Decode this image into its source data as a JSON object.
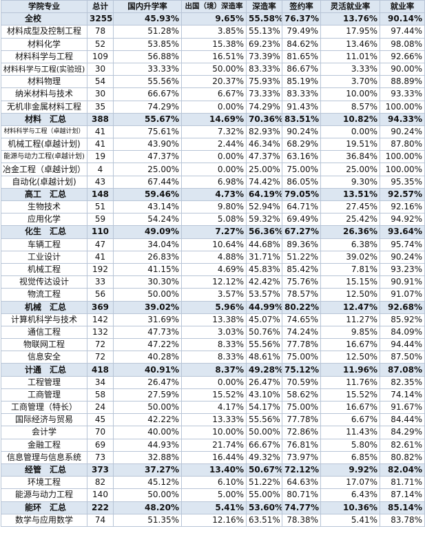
{
  "table": {
    "header": [
      "学院专业",
      "总计",
      "国内升学率",
      "出国（境）深造率",
      "深造率",
      "签约率",
      "灵活就业率",
      "就业率"
    ],
    "rows": [
      {
        "cells": [
          "全校",
          "3255",
          "45.93%",
          "9.65%",
          "55.58%",
          "76.37%",
          "13.76%",
          "90.14%"
        ],
        "highlight": true
      },
      {
        "cells": [
          "材料成型及控制工程",
          "78",
          "51.28%",
          "3.85%",
          "55.13%",
          "79.49%",
          "17.95%",
          "97.44%"
        ],
        "highlight": false
      },
      {
        "cells": [
          "材料化学",
          "52",
          "53.85%",
          "15.38%",
          "69.23%",
          "84.62%",
          "13.46%",
          "98.08%"
        ],
        "highlight": false
      },
      {
        "cells": [
          "材料科学与工程",
          "109",
          "56.88%",
          "16.51%",
          "73.39%",
          "81.65%",
          "11.01%",
          "92.66%"
        ],
        "highlight": false
      },
      {
        "cells": [
          "材料科学与工程(实验班)",
          "30",
          "33.33%",
          "50.00%",
          "83.33%",
          "86.67%",
          "3.33%",
          "90.00%"
        ],
        "highlight": false
      },
      {
        "cells": [
          "材料物理",
          "54",
          "55.56%",
          "20.37%",
          "75.93%",
          "85.19%",
          "3.70%",
          "88.89%"
        ],
        "highlight": false
      },
      {
        "cells": [
          "纳米材料与技术",
          "30",
          "66.67%",
          "6.67%",
          "73.33%",
          "83.33%",
          "10.00%",
          "93.33%"
        ],
        "highlight": false
      },
      {
        "cells": [
          "无机非金属材料工程",
          "35",
          "74.29%",
          "0.00%",
          "74.29%",
          "91.43%",
          "8.57%",
          "100.00%"
        ],
        "highlight": false
      },
      {
        "cells": [
          "材料　汇总",
          "388",
          "55.67%",
          "14.69%",
          "70.36%",
          "83.51%",
          "10.82%",
          "94.33%"
        ],
        "highlight": true
      },
      {
        "cells": [
          "材料科学与工程（卓越计划）",
          "41",
          "75.61%",
          "7.32%",
          "82.93%",
          "90.24%",
          "0.00%",
          "90.24%"
        ],
        "highlight": false
      },
      {
        "cells": [
          "机械工程(卓越计划)",
          "41",
          "43.90%",
          "2.44%",
          "46.34%",
          "68.29%",
          "19.51%",
          "87.80%"
        ],
        "highlight": false
      },
      {
        "cells": [
          "能源与动力工程(卓越计划)",
          "19",
          "47.37%",
          "0.00%",
          "47.37%",
          "63.16%",
          "36.84%",
          "100.00%"
        ],
        "highlight": false
      },
      {
        "cells": [
          "冶金工程（卓越计划）",
          "4",
          "25.00%",
          "0.00%",
          "25.00%",
          "75.00%",
          "25.00%",
          "100.00%"
        ],
        "highlight": false
      },
      {
        "cells": [
          "自动化(卓越计划)",
          "43",
          "67.44%",
          "6.98%",
          "74.42%",
          "86.05%",
          "9.30%",
          "95.35%"
        ],
        "highlight": false
      },
      {
        "cells": [
          "高工　汇总",
          "148",
          "59.46%",
          "4.73%",
          "64.19%",
          "79.05%",
          "13.51%",
          "92.57%"
        ],
        "highlight": true
      },
      {
        "cells": [
          "生物技术",
          "51",
          "43.14%",
          "9.80%",
          "52.94%",
          "64.71%",
          "27.45%",
          "92.16%"
        ],
        "highlight": false
      },
      {
        "cells": [
          "应用化学",
          "59",
          "54.24%",
          "5.08%",
          "59.32%",
          "69.49%",
          "25.42%",
          "94.92%"
        ],
        "highlight": false
      },
      {
        "cells": [
          "化生　汇总",
          "110",
          "49.09%",
          "7.27%",
          "56.36%",
          "67.27%",
          "26.36%",
          "93.64%"
        ],
        "highlight": true
      },
      {
        "cells": [
          "车辆工程",
          "47",
          "34.04%",
          "10.64%",
          "44.68%",
          "89.36%",
          "6.38%",
          "95.74%"
        ],
        "highlight": false
      },
      {
        "cells": [
          "工业设计",
          "41",
          "26.83%",
          "4.88%",
          "31.71%",
          "51.22%",
          "39.02%",
          "90.24%"
        ],
        "highlight": false
      },
      {
        "cells": [
          "机械工程",
          "192",
          "41.15%",
          "4.69%",
          "45.83%",
          "85.42%",
          "7.81%",
          "93.23%"
        ],
        "highlight": false
      },
      {
        "cells": [
          "视觉传达设计",
          "33",
          "30.30%",
          "12.12%",
          "42.42%",
          "75.76%",
          "15.15%",
          "90.91%"
        ],
        "highlight": false
      },
      {
        "cells": [
          "物流工程",
          "56",
          "50.00%",
          "3.57%",
          "53.57%",
          "78.57%",
          "12.50%",
          "91.07%"
        ],
        "highlight": false
      },
      {
        "cells": [
          "机械　汇总",
          "369",
          "39.02%",
          "5.96%",
          "44.99%",
          "80.22%",
          "12.47%",
          "92.68%"
        ],
        "highlight": true
      },
      {
        "cells": [
          "计算机科学与技术",
          "142",
          "31.69%",
          "13.38%",
          "45.07%",
          "74.65%",
          "11.27%",
          "85.92%"
        ],
        "highlight": false
      },
      {
        "cells": [
          "通信工程",
          "132",
          "47.73%",
          "3.03%",
          "50.76%",
          "74.24%",
          "9.85%",
          "84.09%"
        ],
        "highlight": false
      },
      {
        "cells": [
          "物联网工程",
          "72",
          "47.22%",
          "8.33%",
          "55.56%",
          "77.78%",
          "16.67%",
          "94.44%"
        ],
        "highlight": false
      },
      {
        "cells": [
          "信息安全",
          "72",
          "40.28%",
          "8.33%",
          "48.61%",
          "75.00%",
          "12.50%",
          "87.50%"
        ],
        "highlight": false
      },
      {
        "cells": [
          "计通　汇总",
          "418",
          "40.91%",
          "8.37%",
          "49.28%",
          "75.12%",
          "11.96%",
          "87.08%"
        ],
        "highlight": true
      },
      {
        "cells": [
          "工程管理",
          "34",
          "26.47%",
          "0.00%",
          "26.47%",
          "70.59%",
          "11.76%",
          "82.35%"
        ],
        "highlight": false
      },
      {
        "cells": [
          "工商管理",
          "58",
          "27.59%",
          "15.52%",
          "43.10%",
          "58.62%",
          "15.52%",
          "74.14%"
        ],
        "highlight": false
      },
      {
        "cells": [
          "工商管理（特长）",
          "24",
          "50.00%",
          "4.17%",
          "54.17%",
          "75.00%",
          "16.67%",
          "91.67%"
        ],
        "highlight": false
      },
      {
        "cells": [
          "国际经济与贸易",
          "45",
          "42.22%",
          "13.33%",
          "55.56%",
          "77.78%",
          "6.67%",
          "84.44%"
        ],
        "highlight": false
      },
      {
        "cells": [
          "会计学",
          "70",
          "40.00%",
          "10.00%",
          "50.00%",
          "72.86%",
          "11.43%",
          "84.29%"
        ],
        "highlight": false
      },
      {
        "cells": [
          "金融工程",
          "69",
          "44.93%",
          "21.74%",
          "66.67%",
          "76.81%",
          "5.80%",
          "82.61%"
        ],
        "highlight": false
      },
      {
        "cells": [
          "信息管理与信息系统",
          "73",
          "32.88%",
          "16.44%",
          "49.32%",
          "73.97%",
          "6.85%",
          "80.82%"
        ],
        "highlight": false
      },
      {
        "cells": [
          "经管　汇总",
          "373",
          "37.27%",
          "13.40%",
          "50.67%",
          "72.12%",
          "9.92%",
          "82.04%"
        ],
        "highlight": true
      },
      {
        "cells": [
          "环境工程",
          "82",
          "45.12%",
          "6.10%",
          "51.22%",
          "64.63%",
          "17.07%",
          "81.71%"
        ],
        "highlight": false
      },
      {
        "cells": [
          "能源与动力工程",
          "140",
          "50.00%",
          "5.00%",
          "55.00%",
          "80.71%",
          "6.43%",
          "87.14%"
        ],
        "highlight": false
      },
      {
        "cells": [
          "能环　汇总",
          "222",
          "48.20%",
          "5.41%",
          "53.60%",
          "74.77%",
          "10.36%",
          "85.14%"
        ],
        "highlight": true
      },
      {
        "cells": [
          "数学与应用数学",
          "74",
          "51.35%",
          "12.16%",
          "63.51%",
          "78.38%",
          "5.41%",
          "83.78%"
        ],
        "highlight": false
      }
    ]
  }
}
